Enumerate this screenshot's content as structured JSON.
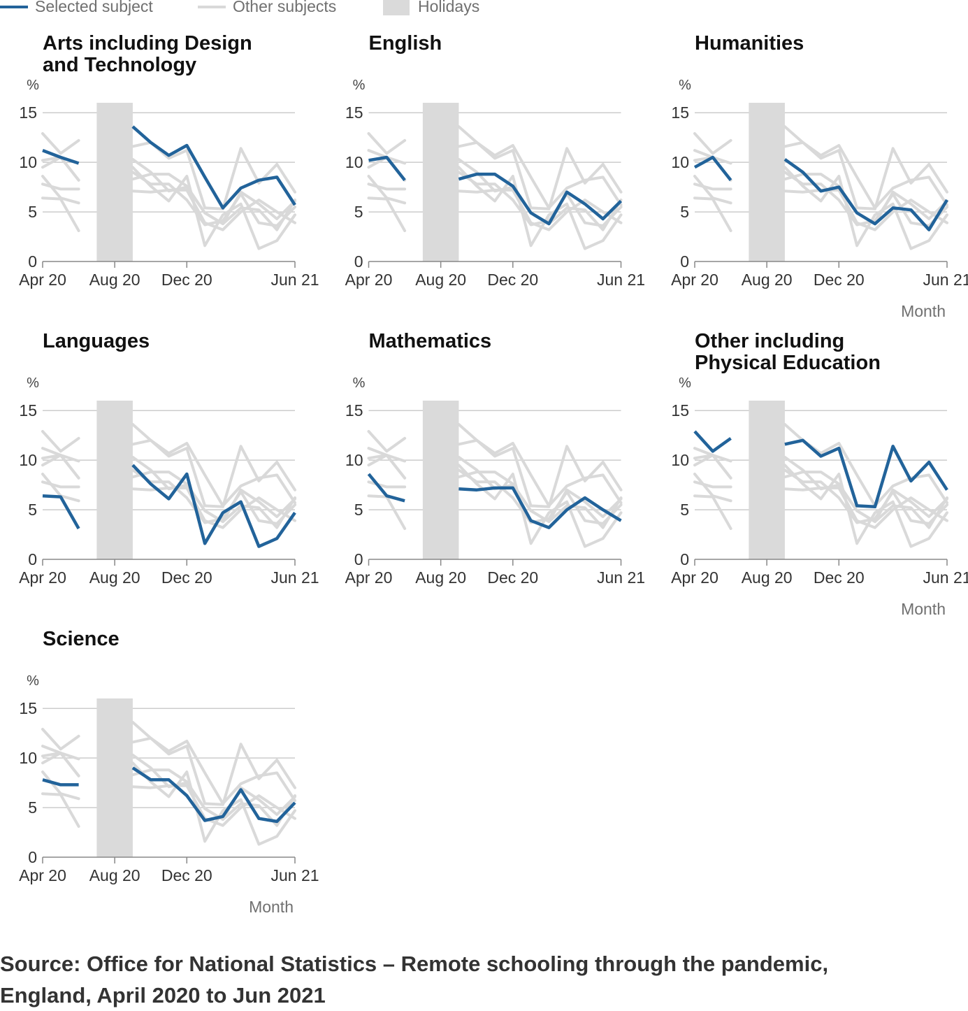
{
  "legend": {
    "selected_label": "Selected subject",
    "other_label": "Other subjects",
    "holidays_label": "Holidays"
  },
  "colors": {
    "selected": "#22639a",
    "other": "#d9d9d9",
    "holiday": "#dadada",
    "grid": "#cccccc",
    "axis": "#888888",
    "muted_text": "#707070"
  },
  "chart_data": {
    "type": "line",
    "layout": "small-multiples",
    "x": [
      "Apr 20",
      "May 20",
      "Jun 20",
      "Jul 20",
      "Aug 20",
      "Sep 20",
      "Oct 20",
      "Nov 20",
      "Dec 20",
      "Jan 21",
      "Feb 21",
      "Mar 21",
      "Apr 21",
      "May 21",
      "Jun 21"
    ],
    "x_ticks": [
      "Apr 20",
      "Aug 20",
      "Dec 20",
      "Jun 21"
    ],
    "xlabel": "Month",
    "ylabel": "%",
    "ylim": [
      0,
      16
    ],
    "y_ticks": [
      0,
      5,
      10,
      15
    ],
    "grid": true,
    "holidays": {
      "from": "Jul 20",
      "to": "Sep 20"
    },
    "legend_position": "top-left",
    "series": [
      {
        "name": "Arts including Design and Technology",
        "values": [
          11.2,
          10.5,
          9.9,
          null,
          null,
          13.6,
          12.0,
          10.7,
          11.7,
          8.5,
          5.4,
          7.4,
          8.2,
          8.5,
          5.7
        ]
      },
      {
        "name": "English",
        "values": [
          10.2,
          10.5,
          8.2,
          null,
          null,
          8.3,
          8.8,
          8.8,
          7.6,
          4.9,
          3.8,
          7.0,
          5.8,
          4.3,
          6.1
        ]
      },
      {
        "name": "Humanities",
        "values": [
          9.5,
          10.5,
          8.2,
          null,
          null,
          10.3,
          9.0,
          7.1,
          7.5,
          4.9,
          3.8,
          5.4,
          5.2,
          3.2,
          6.2
        ]
      },
      {
        "name": "Languages",
        "values": [
          6.4,
          6.3,
          3.1,
          null,
          null,
          9.5,
          7.6,
          6.1,
          8.6,
          1.6,
          4.7,
          5.8,
          1.3,
          2.1,
          4.7
        ]
      },
      {
        "name": "Mathematics",
        "values": [
          8.6,
          6.4,
          5.9,
          null,
          null,
          7.1,
          7.0,
          7.2,
          7.2,
          3.9,
          3.2,
          5.0,
          6.2,
          5.0,
          3.9
        ]
      },
      {
        "name": "Other including Physical Education",
        "values": [
          12.9,
          10.9,
          12.2,
          null,
          null,
          11.6,
          12.0,
          10.4,
          11.2,
          5.4,
          5.3,
          11.4,
          7.9,
          9.8,
          7.0
        ]
      },
      {
        "name": "Science",
        "values": [
          7.8,
          7.3,
          7.3,
          null,
          null,
          9.0,
          7.8,
          7.8,
          6.2,
          3.7,
          4.1,
          6.8,
          3.9,
          3.6,
          5.5
        ]
      }
    ]
  },
  "source": "Source: Office for National Statistics – Remote schooling through the pandemic, England, April 2020 to Jun 2021"
}
